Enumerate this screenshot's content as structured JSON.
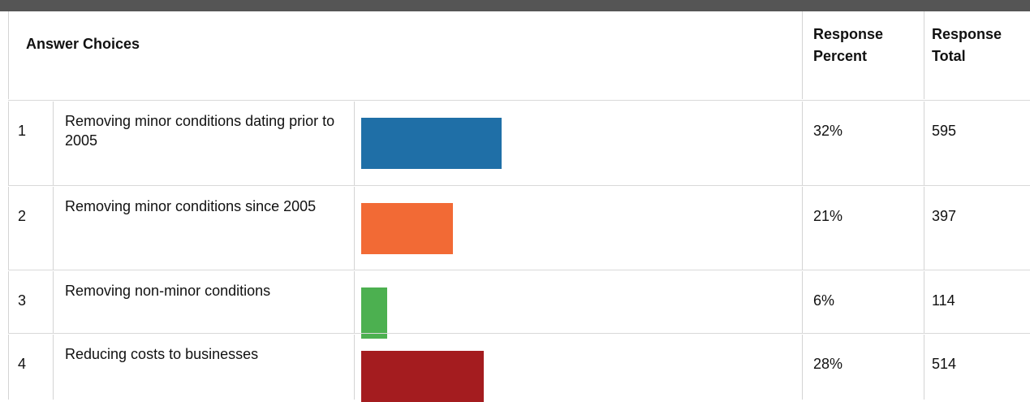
{
  "table": {
    "headers": [
      "Answer Choices",
      "Response Percent",
      "Response Total"
    ],
    "bar_scale_max": 100,
    "rows": [
      {
        "index": 1,
        "choice": "Removing minor conditions dating prior to 2005",
        "percent": 32,
        "percent_label": "32%",
        "total": 595,
        "color": "#1f6fa7"
      },
      {
        "index": 2,
        "choice": "Removing minor conditions since 2005",
        "percent": 21,
        "percent_label": "21%",
        "total": 397,
        "color": "#f26a35"
      },
      {
        "index": 3,
        "choice": "Removing non-minor conditions",
        "percent": 6,
        "percent_label": "6%",
        "total": 114,
        "color": "#4cb050"
      },
      {
        "index": 4,
        "choice": "Reducing costs to businesses",
        "percent": 28,
        "percent_label": "28%",
        "total": 514,
        "color": "#a41c1f"
      }
    ]
  }
}
